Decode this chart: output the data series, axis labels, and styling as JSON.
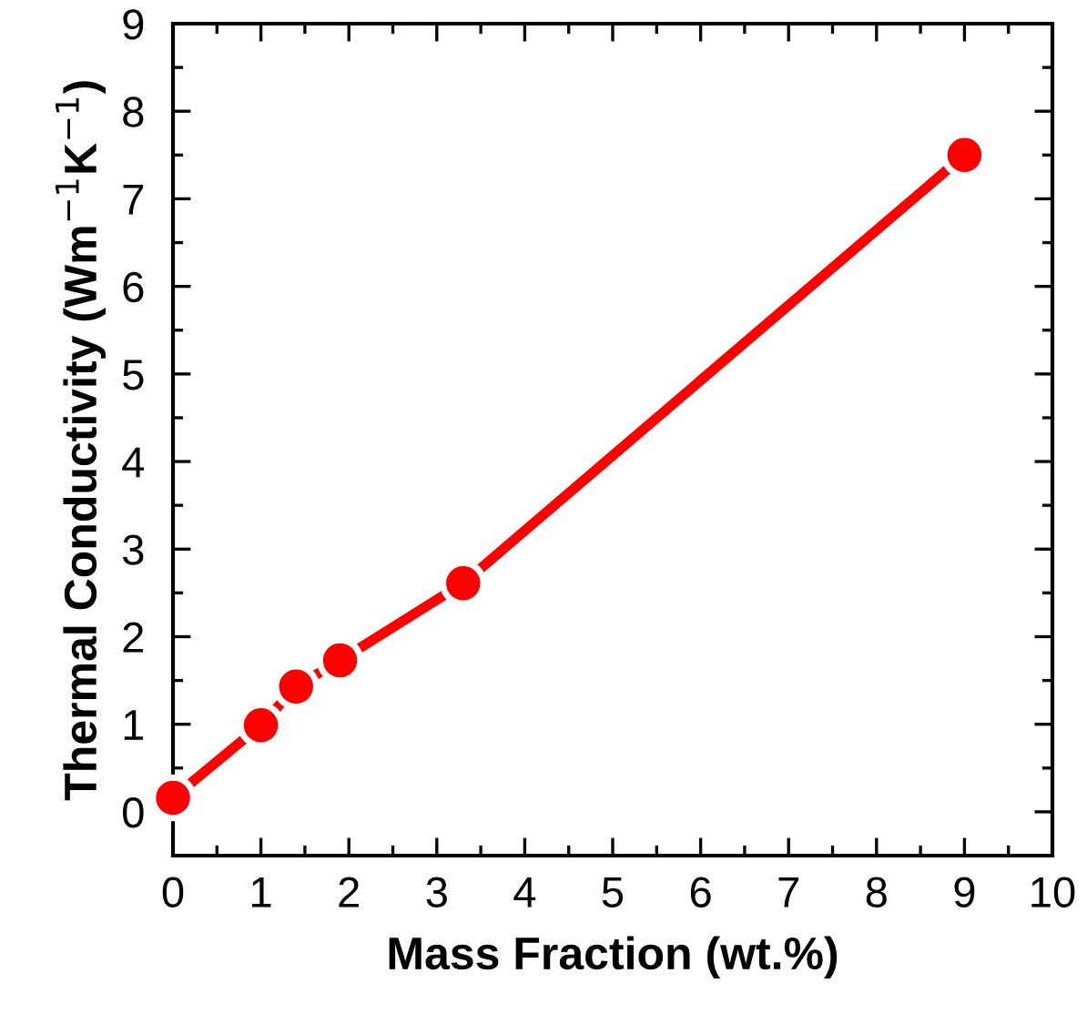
{
  "chart_data": {
    "type": "line",
    "xlabel": "Mass Fraction (wt.%)",
    "ylabel": "Thermal Conductivity (Wm$^{−1}$K$^{−1}$)",
    "x": [
      0,
      1,
      1.4,
      1.9,
      3.3,
      9
    ],
    "series": [
      {
        "color": "#ff0000",
        "values": [
          0.16,
          0.99,
          1.43,
          1.73,
          2.61,
          7.5
        ]
      }
    ],
    "marker": "circle",
    "line_style": "solid",
    "xlim": [
      0,
      10
    ],
    "xticks": [
      0,
      1,
      2,
      3,
      4,
      5,
      6,
      7,
      8,
      9,
      10
    ],
    "ylim": [
      -0.5,
      9
    ],
    "yticks": [
      0,
      1,
      2,
      3,
      4,
      5,
      6,
      7,
      8,
      9
    ],
    "grid": false,
    "legend": false
  }
}
